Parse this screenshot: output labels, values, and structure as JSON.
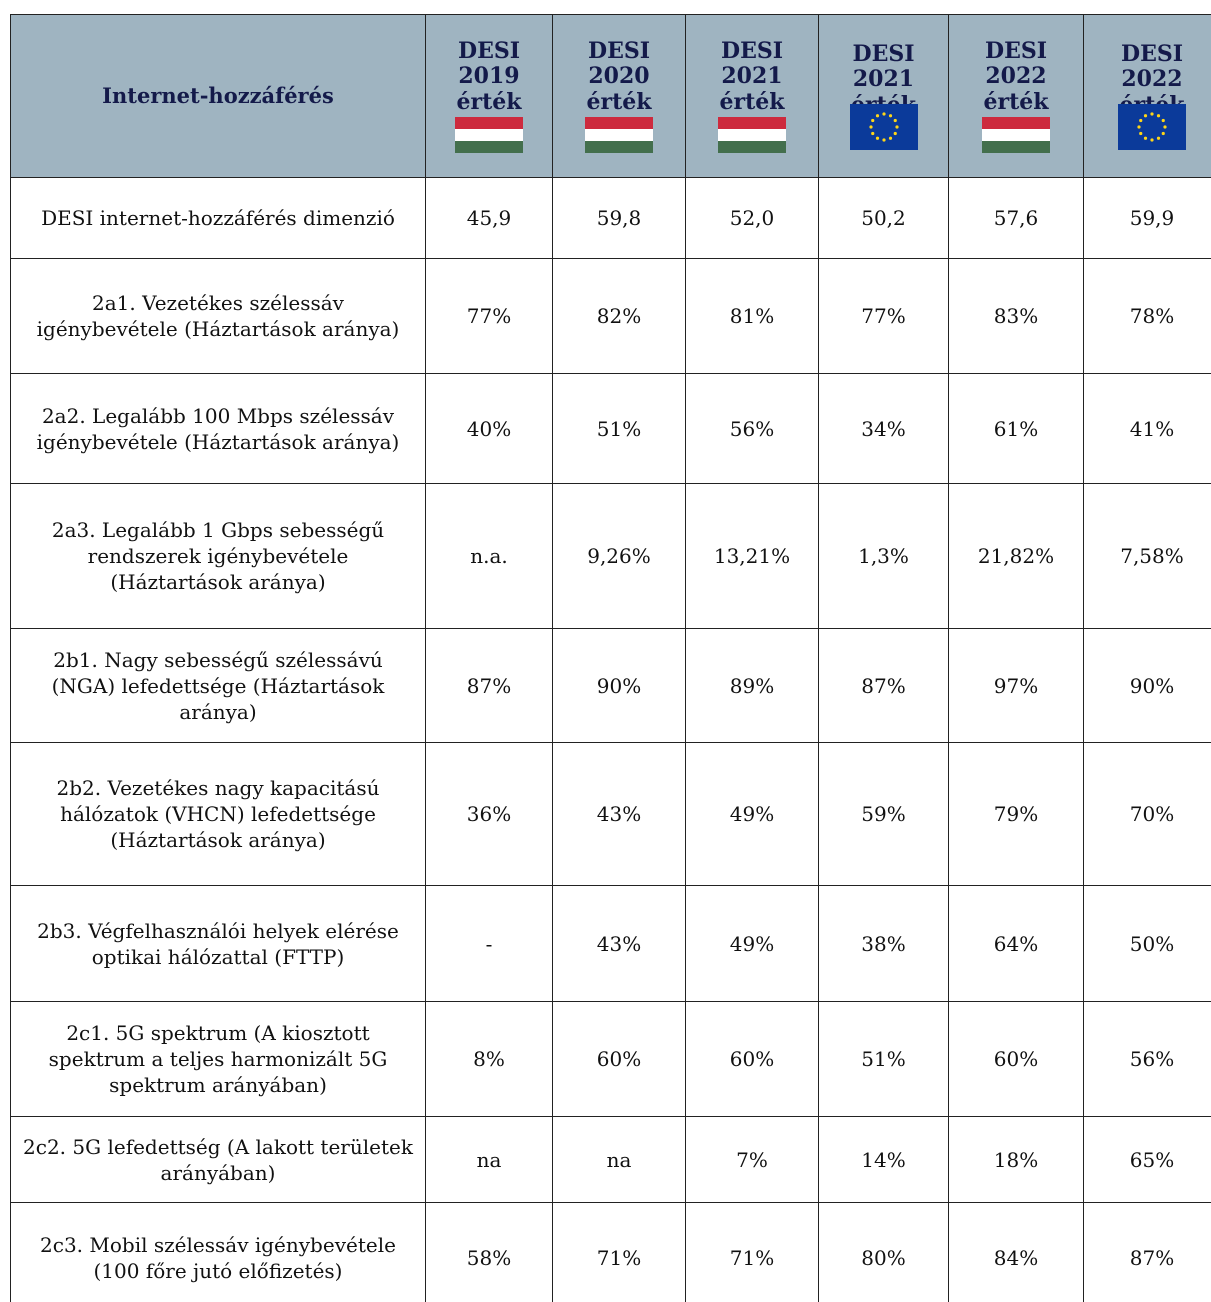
{
  "table": {
    "title": "Internet-hozzáférés",
    "columns": [
      {
        "lines": [
          "DESI",
          "2019",
          "érték"
        ],
        "flag": "hu"
      },
      {
        "lines": [
          "DESI",
          "2020",
          "érték"
        ],
        "flag": "hu"
      },
      {
        "lines": [
          "DESI",
          "2021",
          "érték"
        ],
        "flag": "hu"
      },
      {
        "lines": [
          "DESI",
          "2021",
          "érték"
        ],
        "flag": "eu"
      },
      {
        "lines": [
          "DESI",
          "2022",
          "érték"
        ],
        "flag": "hu"
      },
      {
        "lines": [
          "DESI",
          "2022",
          "érték"
        ],
        "flag": "eu"
      }
    ],
    "rows": [
      {
        "label": "DESI internet-hozzáférés dimenzió",
        "values": [
          "45,9",
          "59,8",
          "52,0",
          "50,2",
          "57,6",
          "59,9"
        ]
      },
      {
        "label": "2a1. Vezetékes szélessáv igénybevétele (Háztartások aránya)",
        "values": [
          "77%",
          "82%",
          "81%",
          "77%",
          "83%",
          "78%"
        ]
      },
      {
        "label": "2a2. Legalább 100 Mbps szélessáv igénybevétele (Háztartások aránya)",
        "values": [
          "40%",
          "51%",
          "56%",
          "34%",
          "61%",
          "41%"
        ]
      },
      {
        "label": "2a3. Legalább 1 Gbps sebességű rendszerek igénybevétele (Háztartások aránya)",
        "values": [
          "n.a.",
          "9,26%",
          "13,21%",
          "1,3%",
          "21,82%",
          "7,58%"
        ]
      },
      {
        "label": "2b1. Nagy sebességű szélessávú (NGA) lefedettsége (Háztartások aránya)",
        "values": [
          "87%",
          "90%",
          "89%",
          "87%",
          "97%",
          "90%"
        ]
      },
      {
        "label": "2b2. Vezetékes nagy kapacitású hálózatok (VHCN) lefedettsége (Háztartások aránya)",
        "values": [
          "36%",
          "43%",
          "49%",
          "59%",
          "79%",
          "70%"
        ]
      },
      {
        "label": "2b3. Végfelhasználói helyek elérése optikai hálózattal (FTTP)",
        "values": [
          "-",
          "43%",
          "49%",
          "38%",
          "64%",
          "50%"
        ]
      },
      {
        "label": "2c1. 5G spektrum (A kiosztott spektrum a teljes harmonizált 5G spektrum arányában)",
        "values": [
          "8%",
          "60%",
          "60%",
          "51%",
          "60%",
          "56%"
        ]
      },
      {
        "label": "2c2. 5G lefedettség (A lakott területek arányában)",
        "values": [
          "na",
          "na",
          "7%",
          "14%",
          "18%",
          "65%"
        ]
      },
      {
        "label": "2c3. Mobil szélessáv igénybevétele (100 főre jutó előfizetés)",
        "values": [
          "58%",
          "71%",
          "71%",
          "80%",
          "84%",
          "87%"
        ]
      }
    ]
  }
}
